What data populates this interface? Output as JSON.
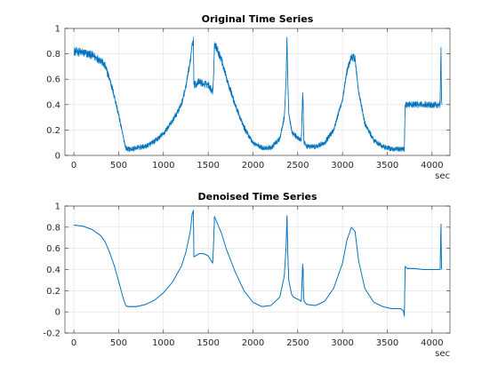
{
  "chart_data": [
    {
      "type": "line",
      "title": "Original Time Series",
      "xlabel": "",
      "ylabel": "",
      "x_unit": "sec",
      "xlim": [
        -100,
        4200
      ],
      "ylim": [
        0,
        1
      ],
      "xticks": [
        0,
        500,
        1000,
        1500,
        2000,
        2500,
        3000,
        3500,
        4000
      ],
      "yticks": [
        0,
        0.2,
        0.4,
        0.6,
        0.8,
        1
      ],
      "ytick_labels": [
        "0",
        "0.2",
        "0.4",
        "0.6",
        "0.8",
        "1"
      ],
      "grid": true,
      "noisy": true,
      "noise_amplitude": 0.05,
      "color": "#0072BD",
      "series": [
        {
          "x": [
            0,
            100,
            200,
            300,
            350,
            400,
            450,
            500,
            550,
            580,
            600,
            650,
            700,
            800,
            900,
            1000,
            1100,
            1200,
            1250,
            1300,
            1320,
            1335,
            1340,
            1360,
            1400,
            1450,
            1500,
            1550,
            1560,
            1570,
            1600,
            1650,
            1700,
            1800,
            1900,
            2000,
            2100,
            2200,
            2300,
            2350,
            2370,
            2380,
            2390,
            2400,
            2430,
            2450,
            2500,
            2540,
            2555,
            2560,
            2565,
            2570,
            2600,
            2700,
            2800,
            2900,
            3000,
            3050,
            3100,
            3140,
            3180,
            3250,
            3350,
            3450,
            3550,
            3650,
            3690,
            3700,
            3720,
            3800,
            3900,
            4000,
            4090,
            4100,
            4105,
            4110
          ],
          "y": [
            0.82,
            0.81,
            0.79,
            0.75,
            0.7,
            0.6,
            0.47,
            0.32,
            0.15,
            0.06,
            0.05,
            0.05,
            0.06,
            0.07,
            0.11,
            0.17,
            0.27,
            0.4,
            0.54,
            0.74,
            0.88,
            0.91,
            0.56,
            0.56,
            0.58,
            0.56,
            0.56,
            0.5,
            0.62,
            0.88,
            0.84,
            0.75,
            0.62,
            0.4,
            0.22,
            0.1,
            0.06,
            0.06,
            0.13,
            0.3,
            0.6,
            0.93,
            0.55,
            0.33,
            0.2,
            0.17,
            0.14,
            0.12,
            0.49,
            0.42,
            0.2,
            0.1,
            0.07,
            0.07,
            0.1,
            0.2,
            0.44,
            0.66,
            0.78,
            0.76,
            0.5,
            0.25,
            0.12,
            0.07,
            0.05,
            0.05,
            0.05,
            0.4,
            0.4,
            0.4,
            0.4,
            0.4,
            0.4,
            0.85,
            0.45,
            0.4
          ]
        }
      ]
    },
    {
      "type": "line",
      "title": "Denoised Time Series",
      "xlabel": "",
      "ylabel": "",
      "x_unit": "sec",
      "xlim": [
        -100,
        4200
      ],
      "ylim": [
        -0.2,
        1
      ],
      "xticks": [
        0,
        500,
        1000,
        1500,
        2000,
        2500,
        3000,
        3500,
        4000
      ],
      "yticks": [
        -0.2,
        0,
        0.2,
        0.4,
        0.6,
        0.8,
        1
      ],
      "ytick_labels": [
        "-0.2",
        "0",
        "0.2",
        "0.4",
        "0.6",
        "0.8",
        "1"
      ],
      "grid": true,
      "noisy": false,
      "noise_amplitude": 0.004,
      "color": "#0072BD",
      "series": [
        {
          "x": [
            0,
            100,
            200,
            300,
            350,
            400,
            450,
            500,
            550,
            580,
            600,
            650,
            700,
            800,
            900,
            1000,
            1100,
            1200,
            1250,
            1300,
            1320,
            1335,
            1340,
            1360,
            1400,
            1450,
            1500,
            1550,
            1560,
            1570,
            1600,
            1650,
            1700,
            1800,
            1900,
            2000,
            2100,
            2200,
            2300,
            2350,
            2370,
            2380,
            2390,
            2400,
            2430,
            2450,
            2500,
            2540,
            2555,
            2560,
            2565,
            2570,
            2600,
            2700,
            2800,
            2900,
            3000,
            3050,
            3100,
            3140,
            3180,
            3250,
            3350,
            3450,
            3550,
            3650,
            3680,
            3690,
            3700,
            3720,
            3800,
            3900,
            4000,
            4090,
            4100,
            4105,
            4110
          ],
          "y": [
            0.82,
            0.81,
            0.78,
            0.72,
            0.66,
            0.56,
            0.44,
            0.29,
            0.13,
            0.06,
            0.05,
            0.05,
            0.05,
            0.07,
            0.11,
            0.18,
            0.28,
            0.43,
            0.56,
            0.76,
            0.92,
            0.96,
            0.52,
            0.53,
            0.55,
            0.55,
            0.53,
            0.46,
            0.64,
            0.9,
            0.84,
            0.74,
            0.6,
            0.38,
            0.2,
            0.09,
            0.05,
            0.06,
            0.14,
            0.34,
            0.62,
            0.91,
            0.52,
            0.3,
            0.17,
            0.14,
            0.12,
            0.1,
            0.45,
            0.4,
            0.18,
            0.1,
            0.07,
            0.06,
            0.1,
            0.22,
            0.46,
            0.68,
            0.8,
            0.76,
            0.48,
            0.22,
            0.09,
            0.05,
            0.03,
            0.03,
            0.01,
            -0.04,
            0.43,
            0.41,
            0.41,
            0.4,
            0.4,
            0.4,
            0.83,
            0.42,
            0.4
          ]
        }
      ]
    }
  ]
}
